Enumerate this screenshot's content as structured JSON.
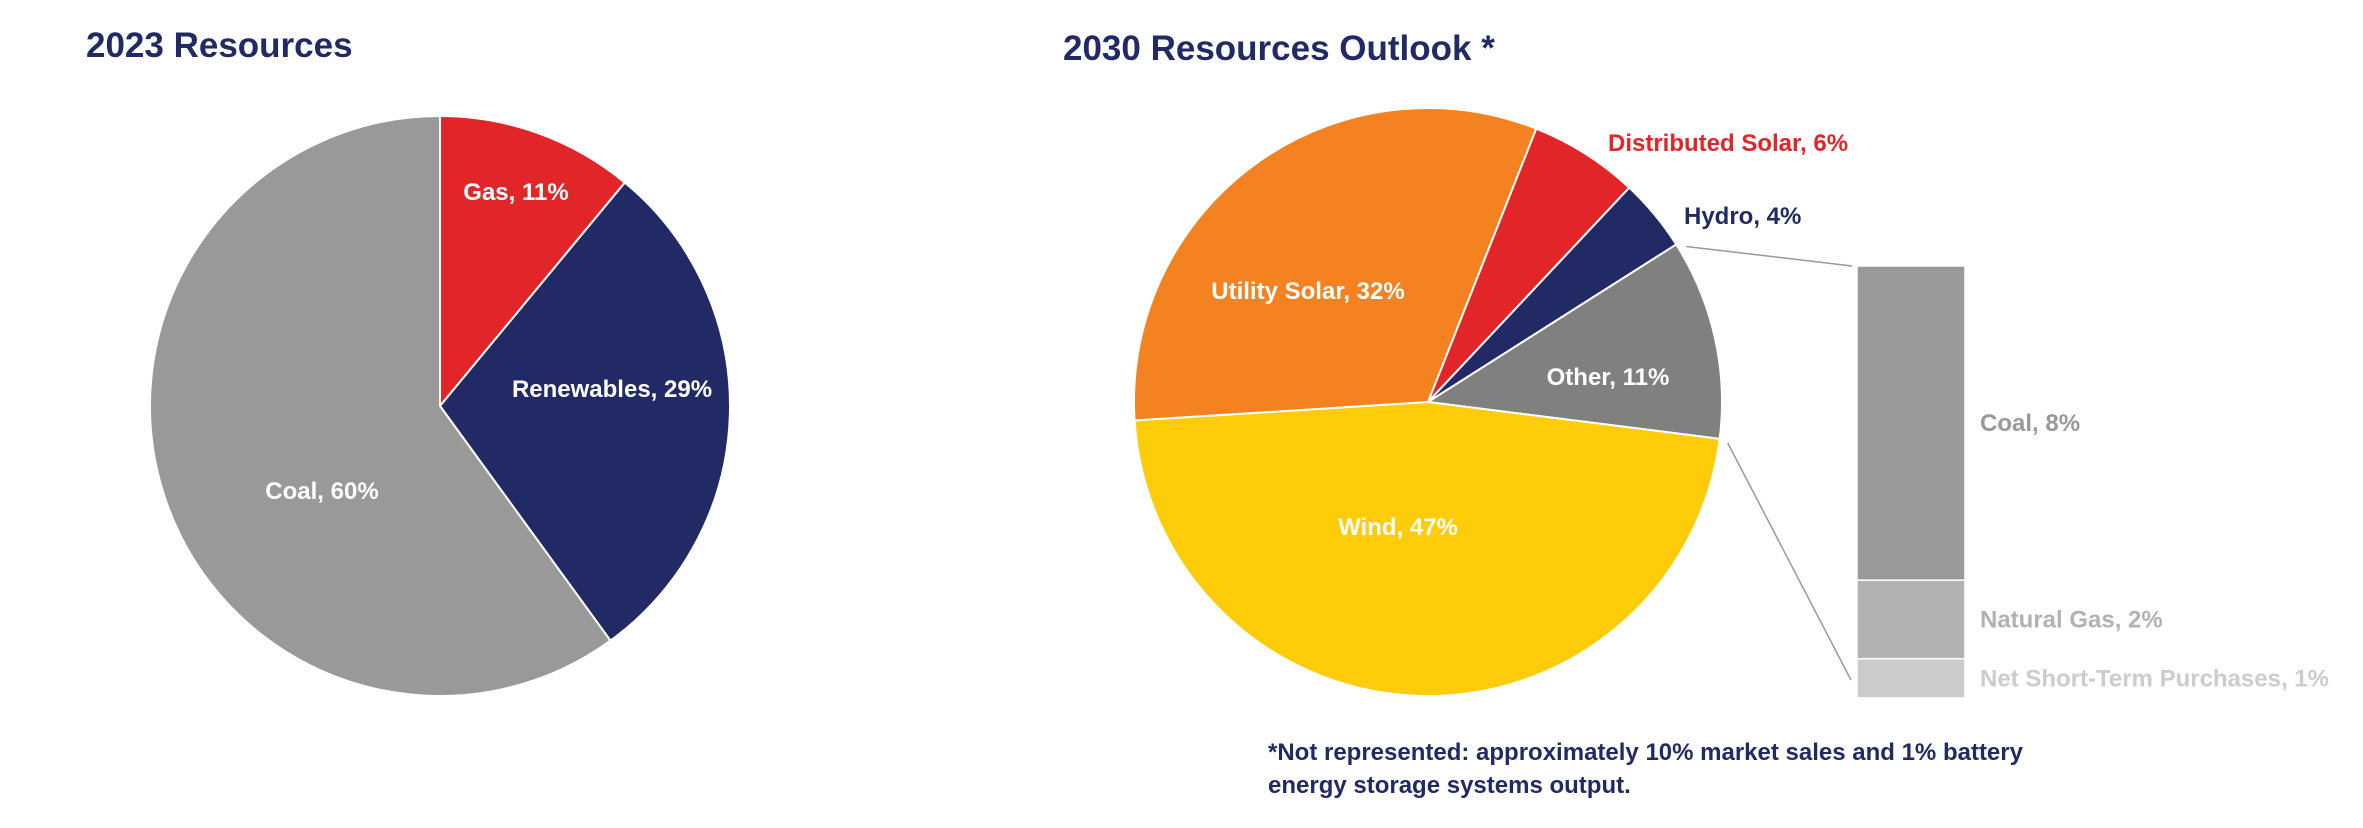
{
  "chart_data": [
    {
      "type": "pie",
      "title": "2023 Resources",
      "slices": [
        {
          "name": "Gas",
          "value": 11,
          "label": "Gas, 11%",
          "color": "#e12528",
          "label_color": "#ffffff"
        },
        {
          "name": "Renewables",
          "value": 29,
          "label": "Renewables, 29%",
          "color": "#222a66",
          "label_color": "#ffffff"
        },
        {
          "name": "Coal",
          "value": 60,
          "label": "Coal, 60%",
          "color": "#999999",
          "label_color": "#ffffff"
        }
      ]
    },
    {
      "type": "pie",
      "title": "2030 Resources Outlook *",
      "slices": [
        {
          "name": "Distributed Solar",
          "value": 6,
          "label": "Distributed Solar, 6%",
          "color": "#e12528",
          "label_color": "#e12528"
        },
        {
          "name": "Hydro",
          "value": 4,
          "label": "Hydro, 4%",
          "color": "#222a66",
          "label_color": "#222a66"
        },
        {
          "name": "Other",
          "value": 11,
          "label": "Other, 11%",
          "color": "#808080",
          "label_color": "#ffffff"
        },
        {
          "name": "Wind",
          "value": 47,
          "label": "Wind, 47%",
          "color": "#fecc09",
          "label_color": "#ffffff"
        },
        {
          "name": "Utility Solar",
          "value": 32,
          "label": "Utility Solar, 32%",
          "color": "#f58220",
          "label_color": "#ffffff"
        }
      ],
      "breakdown": {
        "of": "Other",
        "segments": [
          {
            "name": "Coal",
            "value": 8,
            "label": "Coal, 8%",
            "color": "#999999",
            "label_color": "#999999"
          },
          {
            "name": "Natural Gas",
            "value": 2,
            "label": "Natural Gas, 2%",
            "color": "#b2b2b2",
            "label_color": "#b2b2b2"
          },
          {
            "name": "Net Short-Term Purchases",
            "value": 1,
            "label": "Net Short-Term Purchases, 1%",
            "color": "#cccccc",
            "label_color": "#cccccc"
          }
        ]
      },
      "footnote": "*Not represented: approximately 10% market sales and 1% battery energy storage systems output."
    }
  ]
}
